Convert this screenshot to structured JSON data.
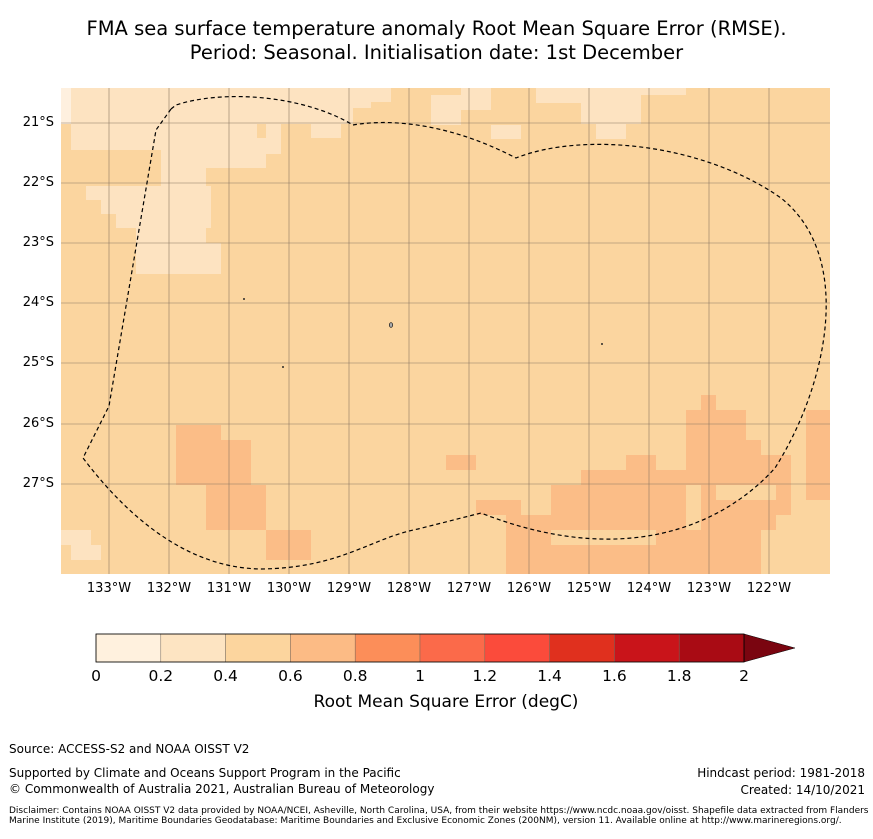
{
  "title": {
    "line1": "FMA sea surface temperature anomaly Root Mean Square Error (RMSE).",
    "line2": "Period: Seasonal. Initialisation date: 1st December"
  },
  "map": {
    "lat_labels": [
      "21°S",
      "22°S",
      "23°S",
      "24°S",
      "25°S",
      "26°S",
      "27°S"
    ],
    "lon_labels": [
      "133°W",
      "132°W",
      "131°W",
      "130°W",
      "129°W",
      "128°W",
      "127°W",
      "126°W",
      "125°W",
      "124°W",
      "123°W",
      "122°W"
    ],
    "colors": {
      "c0": "#fef0df",
      "c1": "#fde3c1",
      "c2": "#fbd59f",
      "c3": "#fbbd87",
      "grid": "#8c7863",
      "boundary": "#000000"
    }
  },
  "colorbar": {
    "ticks": [
      "0",
      "0.2",
      "0.4",
      "0.6",
      "0.8",
      "1",
      "1.2",
      "1.4",
      "1.6",
      "1.8",
      "2"
    ],
    "colors": [
      "#fff1de",
      "#fde4c2",
      "#fcd59e",
      "#fcbb85",
      "#fc8e59",
      "#fb6a4a",
      "#fb4b3b",
      "#e0301e",
      "#c9141a",
      "#a90b14",
      "#7a0510"
    ],
    "label": "Root Mean Square Error (degC)"
  },
  "footer": {
    "source": "Source: ACCESS-S2 and NOAA OISST V2",
    "supported": "Supported by Climate and Oceans Support Program in the Pacific",
    "copyright": "© Commonwealth of Australia 2021, Australian Bureau of Meteorology",
    "hindcast": "Hindcast period: 1981-2018",
    "created": "Created: 14/10/2021",
    "disclaimer": "Disclaimer: Contains NOAA OISST V2 data provided by NOAA/NCEI, Asheville, North Carolina, USA, from their website https://www.ncdc.noaa.gov/oisst. Shapefile data extracted from Flanders Marine Institute (2019), Maritime Boundaries Geodatabase: Maritime Boundaries and Exclusive Economic Zones (200NM), version 11. Available online at http://www.marineregions.org/."
  }
}
